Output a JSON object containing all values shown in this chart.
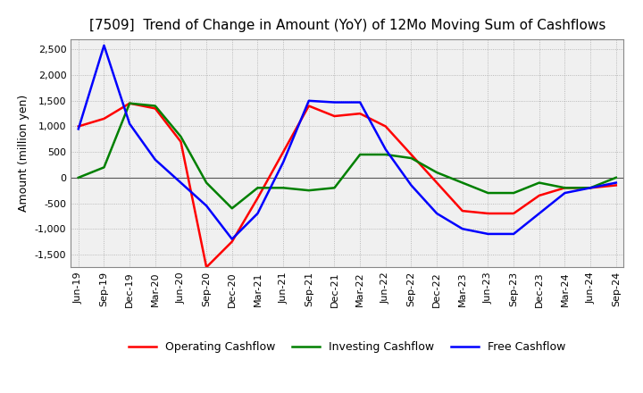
{
  "title": "[7509]  Trend of Change in Amount (YoY) of 12Mo Moving Sum of Cashflows",
  "ylabel": "Amount (million yen)",
  "ylim": [
    -1750,
    2700
  ],
  "yticks": [
    -1500,
    -1000,
    -500,
    0,
    500,
    1000,
    1500,
    2000,
    2500
  ],
  "x_labels": [
    "Jun-19",
    "Sep-19",
    "Dec-19",
    "Mar-20",
    "Jun-20",
    "Sep-20",
    "Dec-20",
    "Mar-21",
    "Jun-21",
    "Sep-21",
    "Dec-21",
    "Mar-22",
    "Jun-22",
    "Sep-22",
    "Dec-22",
    "Mar-23",
    "Jun-23",
    "Sep-23",
    "Dec-23",
    "Mar-24",
    "Jun-24",
    "Sep-24"
  ],
  "operating": [
    1000,
    1150,
    1450,
    1350,
    700,
    -1750,
    -1250,
    -400,
    500,
    1400,
    1200,
    1250,
    1000,
    450,
    -100,
    -650,
    -700,
    -700,
    -350,
    -200,
    -200,
    -150
  ],
  "investing": [
    0,
    200,
    1450,
    1400,
    800,
    -100,
    -600,
    -200,
    -200,
    -250,
    -200,
    450,
    450,
    380,
    100,
    -100,
    -300,
    -300,
    -100,
    -200,
    -200,
    0
  ],
  "free": [
    950,
    2580,
    1050,
    350,
    -100,
    -550,
    -1200,
    -700,
    300,
    1500,
    1470,
    1470,
    550,
    -150,
    -700,
    -1000,
    -1100,
    -1100,
    -700,
    -300,
    -200,
    -100
  ],
  "operating_color": "#ff0000",
  "investing_color": "#008000",
  "free_color": "#0000ff",
  "background_color": "#ffffff",
  "plot_bg_color": "#f0f0f0",
  "grid_color": "#aaaaaa",
  "title_fontsize": 11,
  "axis_fontsize": 9,
  "legend_fontsize": 9,
  "tick_fontsize": 8
}
